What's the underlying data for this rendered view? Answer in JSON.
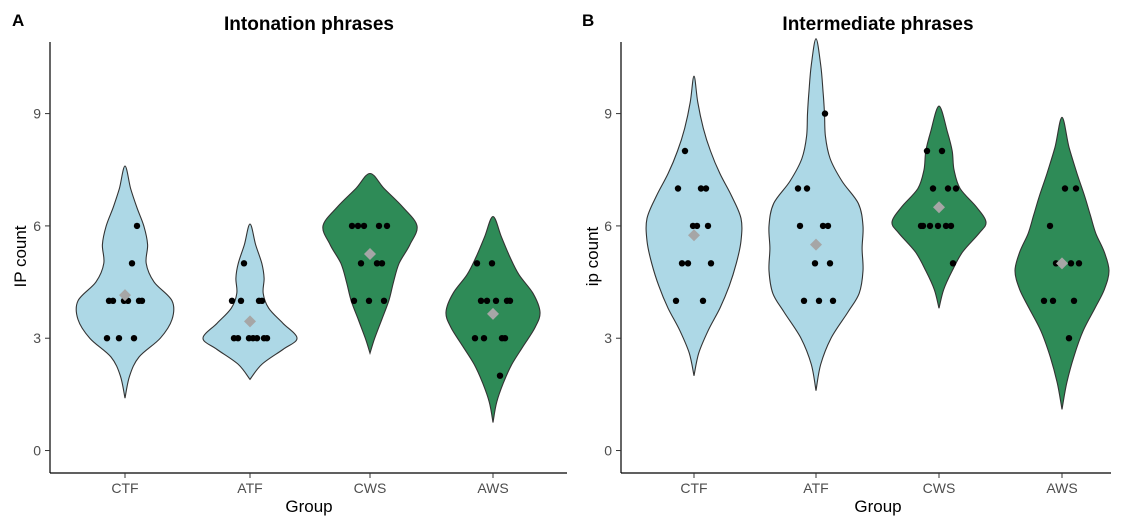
{
  "colors": {
    "fluent": "#add8e6",
    "stutter": "#2e8b57",
    "mean_marker": "#a6a6a6",
    "points": "#000000"
  },
  "chart_data": [
    {
      "type": "violin",
      "panel_letter": "A",
      "title": "Intonation phrases",
      "xlabel": "Group",
      "ylabel": "IP count",
      "ylim": [
        -0.6,
        11.5
      ],
      "yticks": [
        0,
        3,
        6,
        9
      ],
      "grid": false,
      "categories": [
        "CTF",
        "ATF",
        "CWS",
        "AWS"
      ],
      "groups": [
        {
          "name": "CTF",
          "color": "#add8e6",
          "vmin": 1.4,
          "vmax": 7.6,
          "density": [
            [
              1.4,
              0.0
            ],
            [
              2.0,
              0.1
            ],
            [
              2.5,
              0.3
            ],
            [
              3.0,
              0.75
            ],
            [
              3.5,
              1.0
            ],
            [
              4.0,
              1.0
            ],
            [
              4.5,
              0.62
            ],
            [
              5.0,
              0.45
            ],
            [
              5.5,
              0.48
            ],
            [
              6.0,
              0.4
            ],
            [
              6.5,
              0.25
            ],
            [
              7.0,
              0.12
            ],
            [
              7.6,
              0.0
            ]
          ],
          "points": [
            3,
            3,
            3,
            4,
            4,
            4,
            4,
            4,
            4,
            5,
            6
          ],
          "mean": 4.15
        },
        {
          "name": "ATF",
          "color": "#add8e6",
          "vmin": 1.9,
          "vmax": 6.05,
          "density": [
            [
              1.9,
              0.0
            ],
            [
              2.3,
              0.25
            ],
            [
              2.7,
              0.7
            ],
            [
              3.0,
              1.0
            ],
            [
              3.4,
              0.7
            ],
            [
              3.8,
              0.4
            ],
            [
              4.2,
              0.28
            ],
            [
              4.6,
              0.3
            ],
            [
              5.0,
              0.25
            ],
            [
              5.5,
              0.12
            ],
            [
              6.05,
              0.0
            ]
          ],
          "points": [
            3,
            3,
            3,
            3,
            3,
            3,
            3,
            4,
            4,
            4,
            4,
            5
          ],
          "mean": 3.45
        },
        {
          "name": "CWS",
          "color": "#2e8b57",
          "vmin": 2.6,
          "vmax": 7.4,
          "density": [
            [
              2.6,
              0.0
            ],
            [
              3.0,
              0.1
            ],
            [
              3.5,
              0.25
            ],
            [
              4.0,
              0.4
            ],
            [
              4.5,
              0.5
            ],
            [
              5.0,
              0.62
            ],
            [
              5.5,
              0.85
            ],
            [
              6.0,
              1.0
            ],
            [
              6.5,
              0.7
            ],
            [
              7.0,
              0.3
            ],
            [
              7.4,
              0.0
            ]
          ],
          "points": [
            4,
            4,
            4,
            5,
            5,
            5,
            6,
            6,
            6,
            6,
            6
          ],
          "mean": 5.25
        },
        {
          "name": "AWS",
          "color": "#2e8b57",
          "vmin": 0.75,
          "vmax": 6.25,
          "density": [
            [
              0.75,
              0.0
            ],
            [
              1.3,
              0.08
            ],
            [
              1.8,
              0.22
            ],
            [
              2.3,
              0.4
            ],
            [
              2.8,
              0.65
            ],
            [
              3.3,
              0.9
            ],
            [
              3.7,
              1.0
            ],
            [
              4.2,
              0.85
            ],
            [
              4.7,
              0.55
            ],
            [
              5.2,
              0.35
            ],
            [
              5.7,
              0.18
            ],
            [
              6.25,
              0.0
            ]
          ],
          "points": [
            2,
            3,
            3,
            3,
            3,
            4,
            4,
            4,
            4,
            4,
            5,
            5
          ],
          "mean": 3.65
        }
      ]
    },
    {
      "type": "violin",
      "panel_letter": "B",
      "title": "Intermediate phrases",
      "xlabel": "Group",
      "ylabel": "ip count",
      "ylim": [
        -0.6,
        11.5
      ],
      "yticks": [
        0,
        3,
        6,
        9
      ],
      "grid": false,
      "categories": [
        "CTF",
        "ATF",
        "CWS",
        "AWS"
      ],
      "groups": [
        {
          "name": "CTF",
          "color": "#add8e6",
          "vmin": 2.0,
          "vmax": 10.0,
          "density": [
            [
              2.0,
              0.0
            ],
            [
              2.6,
              0.1
            ],
            [
              3.2,
              0.3
            ],
            [
              3.8,
              0.55
            ],
            [
              4.4,
              0.75
            ],
            [
              5.0,
              0.9
            ],
            [
              5.6,
              1.0
            ],
            [
              6.2,
              1.0
            ],
            [
              6.8,
              0.8
            ],
            [
              7.4,
              0.55
            ],
            [
              8.0,
              0.35
            ],
            [
              8.6,
              0.2
            ],
            [
              9.3,
              0.08
            ],
            [
              10.0,
              0.0
            ]
          ],
          "points": [
            4,
            4,
            5,
            5,
            5,
            6,
            6,
            6,
            7,
            7,
            7,
            8
          ],
          "mean": 5.75
        },
        {
          "name": "ATF",
          "color": "#add8e6",
          "vmin": 1.6,
          "vmax": 11.0,
          "density": [
            [
              1.6,
              0.0
            ],
            [
              2.3,
              0.1
            ],
            [
              3.0,
              0.32
            ],
            [
              3.7,
              0.68
            ],
            [
              4.2,
              0.92
            ],
            [
              4.8,
              1.0
            ],
            [
              5.4,
              0.98
            ],
            [
              6.0,
              1.0
            ],
            [
              6.6,
              0.9
            ],
            [
              7.2,
              0.55
            ],
            [
              7.8,
              0.3
            ],
            [
              8.4,
              0.2
            ],
            [
              9.0,
              0.18
            ],
            [
              9.6,
              0.15
            ],
            [
              10.3,
              0.1
            ],
            [
              11.0,
              0.0
            ]
          ],
          "points": [
            4,
            4,
            4,
            5,
            5,
            6,
            6,
            6,
            7,
            7,
            9
          ],
          "mean": 5.5
        },
        {
          "name": "CWS",
          "color": "#2e8b57",
          "vmin": 3.8,
          "vmax": 9.2,
          "density": [
            [
              3.8,
              0.0
            ],
            [
              4.3,
              0.1
            ],
            [
              4.8,
              0.28
            ],
            [
              5.3,
              0.5
            ],
            [
              5.8,
              0.85
            ],
            [
              6.1,
              1.0
            ],
            [
              6.5,
              0.8
            ],
            [
              7.0,
              0.45
            ],
            [
              7.5,
              0.32
            ],
            [
              8.0,
              0.28
            ],
            [
              8.5,
              0.18
            ],
            [
              9.2,
              0.0
            ]
          ],
          "points": [
            5,
            6,
            6,
            6,
            6,
            6,
            6,
            7,
            7,
            7,
            8,
            8
          ],
          "mean": 6.5
        },
        {
          "name": "AWS",
          "color": "#2e8b57",
          "vmin": 1.1,
          "vmax": 8.9,
          "density": [
            [
              1.1,
              0.0
            ],
            [
              1.8,
              0.1
            ],
            [
              2.5,
              0.25
            ],
            [
              3.2,
              0.45
            ],
            [
              3.8,
              0.7
            ],
            [
              4.3,
              0.9
            ],
            [
              4.8,
              1.0
            ],
            [
              5.3,
              0.9
            ],
            [
              5.8,
              0.72
            ],
            [
              6.3,
              0.6
            ],
            [
              6.8,
              0.48
            ],
            [
              7.4,
              0.32
            ],
            [
              8.1,
              0.15
            ],
            [
              8.9,
              0.0
            ]
          ],
          "points": [
            3,
            4,
            4,
            4,
            5,
            5,
            5,
            6,
            7,
            7
          ],
          "mean": 5.0
        }
      ]
    }
  ]
}
